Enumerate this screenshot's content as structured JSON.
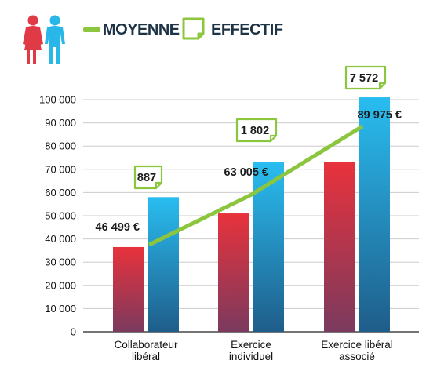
{
  "legend": {
    "moyenne_label": "MOYENNE",
    "effectif_label": "EFFECTIF",
    "moyenne_color": "#8cc63f",
    "effectif_color": "#8cc63f",
    "people_icon": "female-male-people-icon"
  },
  "colors": {
    "female_bar_top": "#e8323c",
    "female_bar_bottom": "#7b3a5e",
    "male_bar_top": "#29bdf0",
    "male_bar_bottom": "#1f5d8a",
    "axis_text": "#111111",
    "grid": "#cccccc"
  },
  "chart_data": {
    "type": "bar",
    "categories": [
      [
        "Collaborateur",
        "libéral"
      ],
      [
        "Exercice",
        "individuel"
      ],
      [
        "Exercice libéral",
        "associé"
      ]
    ],
    "series": [
      {
        "values": [
          36500,
          51000,
          73000
        ],
        "color_key": "female"
      },
      {
        "values": [
          58000,
          73000,
          101000
        ],
        "color_key": "male"
      }
    ],
    "moyenne": {
      "values": [
        37500,
        59000,
        88500
      ],
      "labels": [
        "46 499 €",
        "63 005 €",
        "89 975 €"
      ]
    },
    "effectif": [
      "887",
      "1 802",
      "7 572"
    ],
    "yticks": [
      "0",
      "10 000",
      "20 000",
      "30 000",
      "40 000",
      "50 000",
      "60 000",
      "70 000",
      "80 000",
      "90 000",
      "100 000"
    ],
    "ylim": [
      0,
      100000
    ],
    "grid": true
  }
}
